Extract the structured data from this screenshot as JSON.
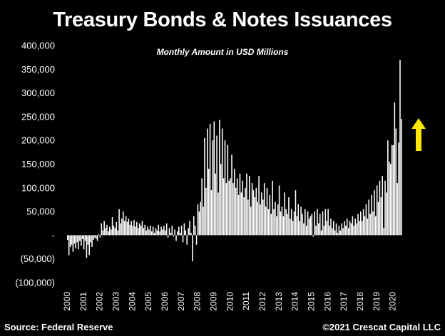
{
  "title": "Treasury Bonds & Notes Issuances",
  "subtitle": "Monthly Amount in USD Millions",
  "source": "Source: Federal Reserve",
  "copyright": "©2021 Crescat Capital LLC",
  "colors": {
    "background": "#000000",
    "bars": "#ffffff",
    "arrow": "#ffe600"
  },
  "chart_data": {
    "type": "bar",
    "title": "Treasury Bonds & Notes Issuances",
    "subtitle": "Monthly Amount in USD Millions",
    "xlabel": "",
    "ylabel": "",
    "ylim": [
      -100000,
      400000
    ],
    "y_ticks": [
      400000,
      350000,
      300000,
      250000,
      200000,
      150000,
      100000,
      50000,
      0,
      -50000,
      -100000
    ],
    "y_tick_labels": [
      "400,000",
      "350,000",
      "300,000",
      "250,000",
      "200,000",
      "150,000",
      "100,000",
      "50,000",
      "-",
      "(50,000)",
      "(100,000)"
    ],
    "x_tick_labels": [
      "2000",
      "2001",
      "2002",
      "2003",
      "2004",
      "2005",
      "2006",
      "2007",
      "2008",
      "2009",
      "2010",
      "2011",
      "2012",
      "2013",
      "2014",
      "2015",
      "2016",
      "2017",
      "2018",
      "2019",
      "2020"
    ],
    "grid": false,
    "legend": "none",
    "annotation": "yellow-up-arrow",
    "bars": [
      {
        "x": "2000",
        "y": -10000
      },
      {
        "x": "2000",
        "y": -42000
      },
      {
        "x": "2000",
        "y": -25000
      },
      {
        "x": "2000",
        "y": -20000
      },
      {
        "x": "2000",
        "y": -35000
      },
      {
        "x": "2000",
        "y": -18000
      },
      {
        "x": "2000",
        "y": -28000
      },
      {
        "x": "2000",
        "y": -15000
      },
      {
        "x": "2000",
        "y": -30000
      },
      {
        "x": "2000",
        "y": -12000
      },
      {
        "x": "2000",
        "y": -22000
      },
      {
        "x": "2000",
        "y": -8000
      },
      {
        "x": "2001",
        "y": -30000
      },
      {
        "x": "2001",
        "y": -12000
      },
      {
        "x": "2001",
        "y": -48000
      },
      {
        "x": "2001",
        "y": -20000
      },
      {
        "x": "2001",
        "y": -42000
      },
      {
        "x": "2001",
        "y": -15000
      },
      {
        "x": "2001",
        "y": -25000
      },
      {
        "x": "2001",
        "y": -10000
      },
      {
        "x": "2001",
        "y": -5000
      },
      {
        "x": "2001",
        "y": -8000
      },
      {
        "x": "2001",
        "y": -12000
      },
      {
        "x": "2001",
        "y": 2000
      },
      {
        "x": "2002",
        "y": -5000
      },
      {
        "x": "2002",
        "y": 25000
      },
      {
        "x": "2002",
        "y": 10000
      },
      {
        "x": "2002",
        "y": 30000
      },
      {
        "x": "2002",
        "y": 15000
      },
      {
        "x": "2002",
        "y": 22000
      },
      {
        "x": "2002",
        "y": 8000
      },
      {
        "x": "2002",
        "y": 18000
      },
      {
        "x": "2002",
        "y": 12000
      },
      {
        "x": "2002",
        "y": 38000
      },
      {
        "x": "2002",
        "y": 20000
      },
      {
        "x": "2002",
        "y": 15000
      },
      {
        "x": "2003",
        "y": 28000
      },
      {
        "x": "2003",
        "y": 10000
      },
      {
        "x": "2003",
        "y": 55000
      },
      {
        "x": "2003",
        "y": 25000
      },
      {
        "x": "2003",
        "y": 35000
      },
      {
        "x": "2003",
        "y": 50000
      },
      {
        "x": "2003",
        "y": 30000
      },
      {
        "x": "2003",
        "y": 40000
      },
      {
        "x": "2003",
        "y": 28000
      },
      {
        "x": "2003",
        "y": 35000
      },
      {
        "x": "2003",
        "y": 22000
      },
      {
        "x": "2003",
        "y": 30000
      },
      {
        "x": "2004",
        "y": 20000
      },
      {
        "x": "2004",
        "y": 32000
      },
      {
        "x": "2004",
        "y": 18000
      },
      {
        "x": "2004",
        "y": 28000
      },
      {
        "x": "2004",
        "y": 15000
      },
      {
        "x": "2004",
        "y": 25000
      },
      {
        "x": "2004",
        "y": 20000
      },
      {
        "x": "2004",
        "y": 30000
      },
      {
        "x": "2004",
        "y": 15000
      },
      {
        "x": "2004",
        "y": 22000
      },
      {
        "x": "2004",
        "y": 10000
      },
      {
        "x": "2004",
        "y": 18000
      },
      {
        "x": "2005",
        "y": 12000
      },
      {
        "x": "2005",
        "y": 20000
      },
      {
        "x": "2005",
        "y": 8000
      },
      {
        "x": "2005",
        "y": 18000
      },
      {
        "x": "2005",
        "y": 5000
      },
      {
        "x": "2005",
        "y": 15000
      },
      {
        "x": "2005",
        "y": 10000
      },
      {
        "x": "2005",
        "y": 22000
      },
      {
        "x": "2005",
        "y": 8000
      },
      {
        "x": "2005",
        "y": 18000
      },
      {
        "x": "2005",
        "y": 12000
      },
      {
        "x": "2005",
        "y": 20000
      },
      {
        "x": "2006",
        "y": 10000
      },
      {
        "x": "2006",
        "y": 25000
      },
      {
        "x": "2006",
        "y": -5000
      },
      {
        "x": "2006",
        "y": 15000
      },
      {
        "x": "2006",
        "y": 5000
      },
      {
        "x": "2006",
        "y": 20000
      },
      {
        "x": "2006",
        "y": -3000
      },
      {
        "x": "2006",
        "y": 12000
      },
      {
        "x": "2006",
        "y": -12000
      },
      {
        "x": "2006",
        "y": 8000
      },
      {
        "x": "2006",
        "y": 18000
      },
      {
        "x": "2006",
        "y": 5000
      },
      {
        "x": "2007",
        "y": 20000
      },
      {
        "x": "2007",
        "y": -15000
      },
      {
        "x": "2007",
        "y": 25000
      },
      {
        "x": "2007",
        "y": 10000
      },
      {
        "x": "2007",
        "y": -20000
      },
      {
        "x": "2007",
        "y": 15000
      },
      {
        "x": "2007",
        "y": 30000
      },
      {
        "x": "2007",
        "y": 5000
      },
      {
        "x": "2007",
        "y": -55000
      },
      {
        "x": "2007",
        "y": 40000
      },
      {
        "x": "2007",
        "y": 20000
      },
      {
        "x": "2007",
        "y": -20000
      },
      {
        "x": "2008",
        "y": 65000
      },
      {
        "x": "2008",
        "y": 50000
      },
      {
        "x": "2008",
        "y": 70000
      },
      {
        "x": "2008",
        "y": 120000
      },
      {
        "x": "2008",
        "y": 60000
      },
      {
        "x": "2008",
        "y": 205000
      },
      {
        "x": "2008",
        "y": 100000
      },
      {
        "x": "2008",
        "y": 225000
      },
      {
        "x": "2008",
        "y": 140000
      },
      {
        "x": "2008",
        "y": 235000
      },
      {
        "x": "2008",
        "y": 95000
      },
      {
        "x": "2008",
        "y": 200000
      },
      {
        "x": "2009",
        "y": 240000
      },
      {
        "x": "2009",
        "y": 130000
      },
      {
        "x": "2009",
        "y": 210000
      },
      {
        "x": "2009",
        "y": 90000
      },
      {
        "x": "2009",
        "y": 243000
      },
      {
        "x": "2009",
        "y": 150000
      },
      {
        "x": "2009",
        "y": 225000
      },
      {
        "x": "2009",
        "y": 120000
      },
      {
        "x": "2009",
        "y": 200000
      },
      {
        "x": "2009",
        "y": 110000
      },
      {
        "x": "2009",
        "y": 190000
      },
      {
        "x": "2009",
        "y": 115000
      },
      {
        "x": "2010",
        "y": 120000
      },
      {
        "x": "2010",
        "y": 170000
      },
      {
        "x": "2010",
        "y": 110000
      },
      {
        "x": "2010",
        "y": 140000
      },
      {
        "x": "2010",
        "y": 100000
      },
      {
        "x": "2010",
        "y": 120000
      },
      {
        "x": "2010",
        "y": 85000
      },
      {
        "x": "2010",
        "y": 130000
      },
      {
        "x": "2010",
        "y": 90000
      },
      {
        "x": "2010",
        "y": 115000
      },
      {
        "x": "2010",
        "y": 80000
      },
      {
        "x": "2010",
        "y": 100000
      },
      {
        "x": "2011",
        "y": 130000
      },
      {
        "x": "2011",
        "y": 75000
      },
      {
        "x": "2011",
        "y": 125000
      },
      {
        "x": "2011",
        "y": 60000
      },
      {
        "x": "2011",
        "y": 110000
      },
      {
        "x": "2011",
        "y": 95000
      },
      {
        "x": "2011",
        "y": 80000
      },
      {
        "x": "2011",
        "y": 100000
      },
      {
        "x": "2011",
        "y": 70000
      },
      {
        "x": "2011",
        "y": 125000
      },
      {
        "x": "2011",
        "y": 65000
      },
      {
        "x": "2011",
        "y": 90000
      },
      {
        "x": "2012",
        "y": 75000
      },
      {
        "x": "2012",
        "y": 110000
      },
      {
        "x": "2012",
        "y": 60000
      },
      {
        "x": "2012",
        "y": 100000
      },
      {
        "x": "2012",
        "y": 55000
      },
      {
        "x": "2012",
        "y": 85000
      },
      {
        "x": "2012",
        "y": 45000
      },
      {
        "x": "2012",
        "y": 115000
      },
      {
        "x": "2012",
        "y": 55000
      },
      {
        "x": "2012",
        "y": 70000
      },
      {
        "x": "2012",
        "y": 40000
      },
      {
        "x": "2012",
        "y": 65000
      },
      {
        "x": "2013",
        "y": 105000
      },
      {
        "x": "2013",
        "y": 50000
      },
      {
        "x": "2013",
        "y": 60000
      },
      {
        "x": "2013",
        "y": 40000
      },
      {
        "x": "2013",
        "y": 90000
      },
      {
        "x": "2013",
        "y": 55000
      },
      {
        "x": "2013",
        "y": 45000
      },
      {
        "x": "2013",
        "y": 80000
      },
      {
        "x": "2013",
        "y": 35000
      },
      {
        "x": "2013",
        "y": 55000
      },
      {
        "x": "2013",
        "y": 30000
      },
      {
        "x": "2013",
        "y": 50000
      },
      {
        "x": "2014",
        "y": 95000
      },
      {
        "x": "2014",
        "y": 40000
      },
      {
        "x": "2014",
        "y": 65000
      },
      {
        "x": "2014",
        "y": 30000
      },
      {
        "x": "2014",
        "y": 60000
      },
      {
        "x": "2014",
        "y": 45000
      },
      {
        "x": "2014",
        "y": 25000
      },
      {
        "x": "2014",
        "y": 55000
      },
      {
        "x": "2014",
        "y": 20000
      },
      {
        "x": "2014",
        "y": 50000
      },
      {
        "x": "2014",
        "y": 35000
      },
      {
        "x": "2014",
        "y": 40000
      },
      {
        "x": "2015",
        "y": 45000
      },
      {
        "x": "2015",
        "y": -3000
      },
      {
        "x": "2015",
        "y": 50000
      },
      {
        "x": "2015",
        "y": 20000
      },
      {
        "x": "2015",
        "y": 55000
      },
      {
        "x": "2015",
        "y": 25000
      },
      {
        "x": "2015",
        "y": 45000
      },
      {
        "x": "2015",
        "y": 10000
      },
      {
        "x": "2015",
        "y": 50000
      },
      {
        "x": "2015",
        "y": 20000
      },
      {
        "x": "2015",
        "y": 55000
      },
      {
        "x": "2015",
        "y": 30000
      },
      {
        "x": "2016",
        "y": 55000
      },
      {
        "x": "2016",
        "y": 20000
      },
      {
        "x": "2016",
        "y": 35000
      },
      {
        "x": "2016",
        "y": 15000
      },
      {
        "x": "2016",
        "y": 30000
      },
      {
        "x": "2016",
        "y": 10000
      },
      {
        "x": "2016",
        "y": 25000
      },
      {
        "x": "2016",
        "y": 5000
      },
      {
        "x": "2016",
        "y": 20000
      },
      {
        "x": "2016",
        "y": 10000
      },
      {
        "x": "2016",
        "y": 25000
      },
      {
        "x": "2016",
        "y": 15000
      },
      {
        "x": "2017",
        "y": 30000
      },
      {
        "x": "2017",
        "y": 20000
      },
      {
        "x": "2017",
        "y": 35000
      },
      {
        "x": "2017",
        "y": 15000
      },
      {
        "x": "2017",
        "y": 30000
      },
      {
        "x": "2017",
        "y": 25000
      },
      {
        "x": "2017",
        "y": 40000
      },
      {
        "x": "2017",
        "y": 20000
      },
      {
        "x": "2017",
        "y": 35000
      },
      {
        "x": "2017",
        "y": 25000
      },
      {
        "x": "2017",
        "y": 45000
      },
      {
        "x": "2017",
        "y": 30000
      },
      {
        "x": "2018",
        "y": 50000
      },
      {
        "x": "2018",
        "y": 30000
      },
      {
        "x": "2018",
        "y": 55000
      },
      {
        "x": "2018",
        "y": 40000
      },
      {
        "x": "2018",
        "y": 65000
      },
      {
        "x": "2018",
        "y": 35000
      },
      {
        "x": "2018",
        "y": 75000
      },
      {
        "x": "2018",
        "y": 45000
      },
      {
        "x": "2018",
        "y": 85000
      },
      {
        "x": "2018",
        "y": 50000
      },
      {
        "x": "2018",
        "y": 95000
      },
      {
        "x": "2018",
        "y": 40000
      },
      {
        "x": "2019",
        "y": 105000
      },
      {
        "x": "2019",
        "y": 70000
      },
      {
        "x": "2019",
        "y": 115000
      },
      {
        "x": "2019",
        "y": 80000
      },
      {
        "x": "2019",
        "y": 125000
      },
      {
        "x": "2019",
        "y": 15000
      },
      {
        "x": "2019",
        "y": 115000
      },
      {
        "x": "2019",
        "y": 90000
      },
      {
        "x": "2019",
        "y": 200000
      },
      {
        "x": "2019",
        "y": 155000
      },
      {
        "x": "2019",
        "y": 150000
      },
      {
        "x": "2019",
        "y": 190000
      },
      {
        "x": "2020",
        "y": 190000
      },
      {
        "x": "2020",
        "y": 280000
      },
      {
        "x": "2020",
        "y": 225000
      },
      {
        "x": "2020",
        "y": 110000
      },
      {
        "x": "2020",
        "y": 195000
      },
      {
        "x": "2020",
        "y": 370000
      },
      {
        "x": "2020",
        "y": 245000
      }
    ]
  }
}
